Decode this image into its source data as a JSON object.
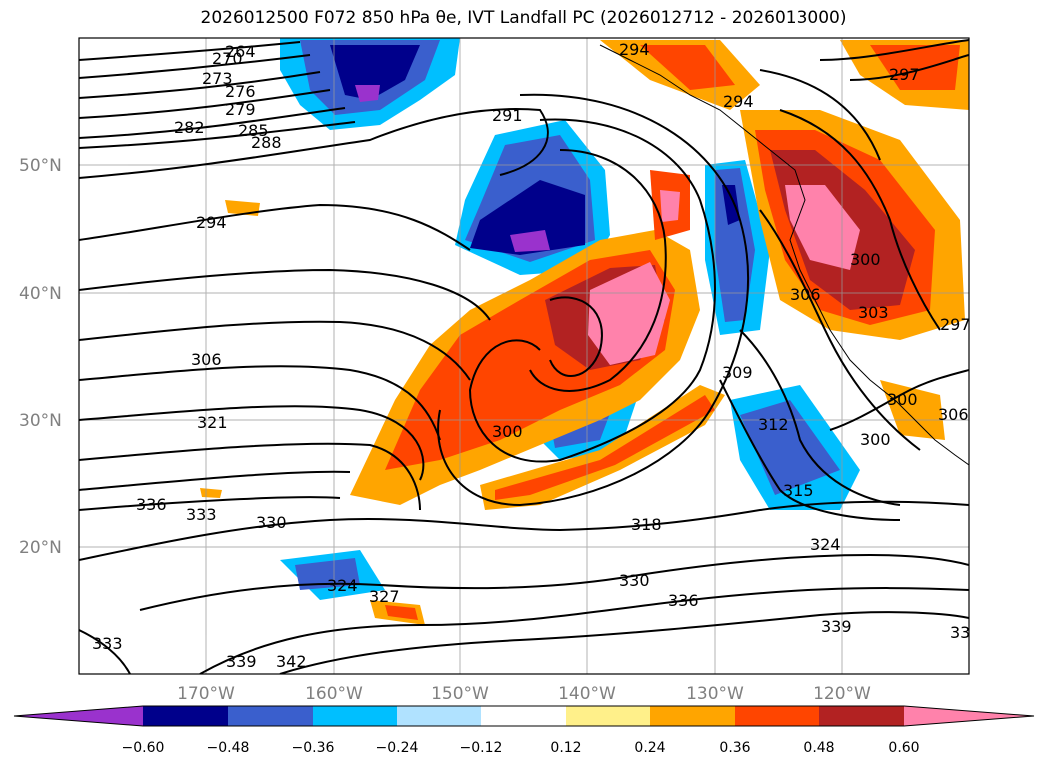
{
  "title": "2026012500 F072 850 hPa θe, IVT Landfall PC (2026012712 - 2026013000)",
  "map": {
    "lon_ticks": [
      "170°W",
      "160°W",
      "150°W",
      "140°W",
      "130°W",
      "120°W"
    ],
    "lat_ticks": [
      "50°N",
      "40°N",
      "30°N",
      "20°N"
    ],
    "contour_labels": [
      "264",
      "270",
      "273",
      "276",
      "279",
      "282",
      "285",
      "288",
      "291",
      "294",
      "294",
      "294",
      "297",
      "306",
      "321",
      "336",
      "333",
      "330",
      "324",
      "327",
      "318",
      "330",
      "336",
      "339",
      "333",
      "339",
      "342",
      "300",
      "309",
      "312",
      "315",
      "324",
      "300",
      "300",
      "306",
      "300",
      "303",
      "306",
      "297",
      "33"
    ]
  },
  "colorbar": {
    "ticks": [
      "−0.60",
      "−0.48",
      "−0.36",
      "−0.24",
      "−0.12",
      "0.12",
      "0.24",
      "0.36",
      "0.48",
      "0.60"
    ],
    "colors": [
      "#9a32cd",
      "#00008b",
      "#3a5fcd",
      "#00bfff",
      "#b0e2ff",
      "#ffffff",
      "#fff08a",
      "#ffa500",
      "#ff4500",
      "#b22222",
      "#ff82ab"
    ]
  }
}
